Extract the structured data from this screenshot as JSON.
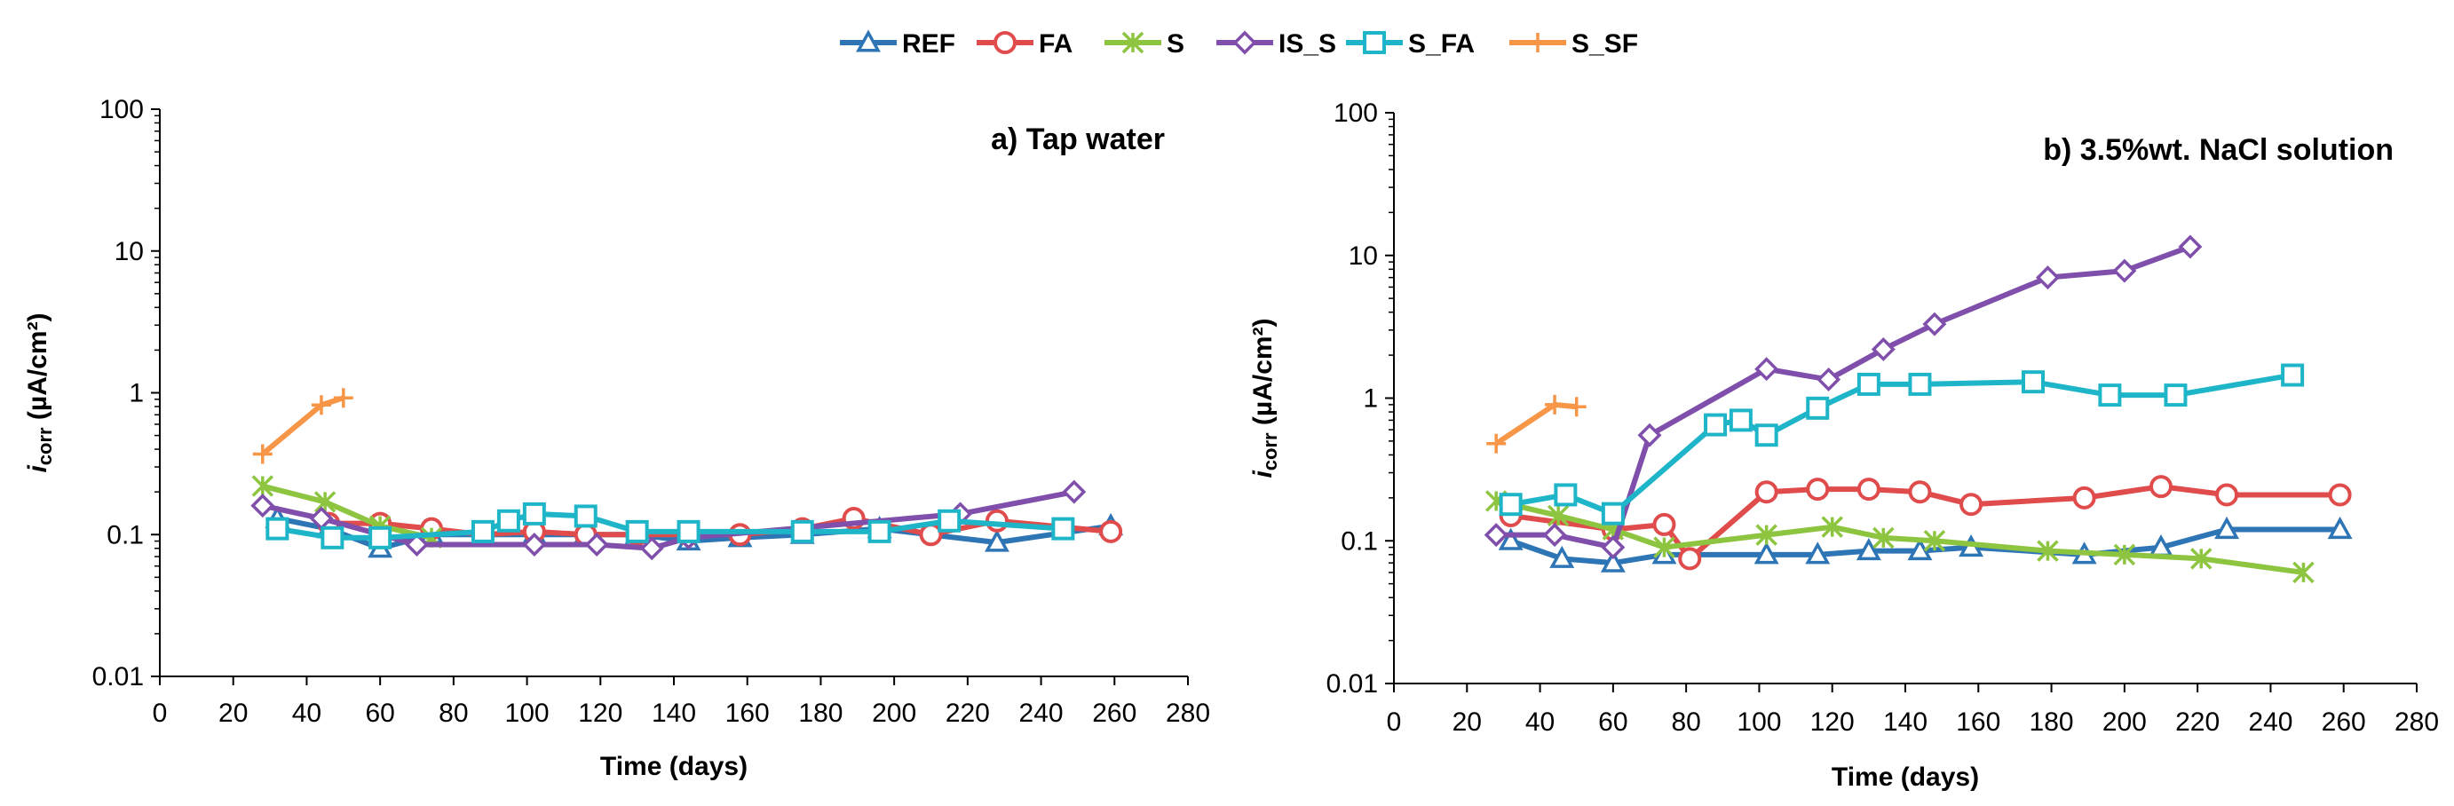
{
  "chart_data": [
    {
      "type": "line",
      "title": "a) Tap water",
      "xlabel": "Time (days)",
      "ylabel_main": "i",
      "ylabel_sub": "corr",
      "ylabel_rest": " (µA/cm²)",
      "xlim": [
        0,
        280
      ],
      "ylim": [
        0.01,
        100
      ],
      "yscale": "log",
      "x_ticks": [
        "0",
        "20",
        "40",
        "60",
        "80",
        "100",
        "120",
        "140",
        "160",
        "180",
        "200",
        "220",
        "240",
        "260",
        "280"
      ],
      "y_ticks": [
        "0.01",
        "0.1",
        "1",
        "10",
        "100"
      ],
      "legend": "top-center",
      "grid": false,
      "series": [
        {
          "name": "REF",
          "color": "#2E75B6",
          "marker": "triangle",
          "x": [
            32,
            46,
            60,
            74,
            88,
            102,
            116,
            130,
            144,
            158,
            175,
            196,
            228,
            259
          ],
          "y": [
            0.13,
            0.11,
            0.08,
            0.1,
            0.1,
            0.1,
            0.1,
            0.1,
            0.09,
            0.095,
            0.1,
            0.11,
            0.088,
            0.115
          ]
        },
        {
          "name": "FA",
          "color": "#E04B4B",
          "marker": "circle",
          "x": [
            46,
            60,
            74,
            88,
            102,
            116,
            130,
            144,
            158,
            175,
            189,
            210,
            228,
            259
          ],
          "y": [
            0.12,
            0.12,
            0.11,
            0.1,
            0.105,
            0.1,
            0.1,
            0.1,
            0.1,
            0.11,
            0.13,
            0.1,
            0.125,
            0.105
          ]
        },
        {
          "name": "S",
          "color": "#8DC540",
          "marker": "x",
          "x": [
            28,
            45,
            60,
            74
          ],
          "y": [
            0.22,
            0.17,
            0.115,
            0.095
          ]
        },
        {
          "name": "IS_S",
          "color": "#7F4FAB",
          "marker": "diamond",
          "x": [
            28,
            44,
            70,
            102,
            119,
            134,
            144,
            218,
            249
          ],
          "y": [
            0.16,
            0.13,
            0.085,
            0.085,
            0.085,
            0.08,
            0.095,
            0.14,
            0.2
          ]
        },
        {
          "name": "S_FA",
          "color": "#1FB5C9",
          "marker": "square",
          "x": [
            32,
            47,
            60,
            88,
            95,
            102,
            116,
            130,
            144,
            175,
            196,
            215,
            246
          ],
          "y": [
            0.11,
            0.095,
            0.095,
            0.105,
            0.125,
            0.14,
            0.135,
            0.105,
            0.105,
            0.105,
            0.105,
            0.125,
            0.11
          ]
        },
        {
          "name": "S_SF",
          "color": "#F79646",
          "marker": "plus",
          "x": [
            28,
            44,
            50
          ],
          "y": [
            0.37,
            0.82,
            0.92
          ]
        }
      ]
    },
    {
      "type": "line",
      "title": "b) 3.5%wt. NaCl solution",
      "xlabel": "Time (days)",
      "ylabel_main": "i",
      "ylabel_sub": "corr",
      "ylabel_rest": " (µA/cm²)",
      "xlim": [
        0,
        280
      ],
      "ylim": [
        0.01,
        100
      ],
      "yscale": "log",
      "x_ticks": [
        "0",
        "20",
        "40",
        "60",
        "80",
        "100",
        "120",
        "140",
        "160",
        "180",
        "200",
        "220",
        "240",
        "260",
        "280"
      ],
      "y_ticks": [
        "0.01",
        "0.1",
        "1",
        "10",
        "100"
      ],
      "legend": "top-center",
      "grid": false,
      "series": [
        {
          "name": "REF",
          "color": "#2E75B6",
          "marker": "triangle",
          "x": [
            32,
            46,
            60,
            74,
            102,
            116,
            130,
            144,
            158,
            189,
            210,
            228,
            259
          ],
          "y": [
            0.1,
            0.075,
            0.07,
            0.08,
            0.08,
            0.08,
            0.085,
            0.085,
            0.09,
            0.08,
            0.09,
            0.12,
            0.12
          ]
        },
        {
          "name": "FA",
          "color": "#E04B4B",
          "marker": "circle",
          "x": [
            32,
            60,
            74,
            81,
            102,
            116,
            130,
            144,
            158,
            189,
            210,
            228,
            259
          ],
          "y": [
            0.15,
            0.12,
            0.13,
            0.075,
            0.22,
            0.23,
            0.23,
            0.22,
            0.18,
            0.2,
            0.24,
            0.21,
            0.21
          ]
        },
        {
          "name": "S",
          "color": "#8DC540",
          "marker": "x",
          "x": [
            28,
            45,
            60,
            74,
            102,
            120,
            134,
            148,
            179,
            200,
            221,
            249
          ],
          "y": [
            0.19,
            0.15,
            0.12,
            0.09,
            0.11,
            0.125,
            0.105,
            0.1,
            0.085,
            0.08,
            0.075,
            0.06
          ]
        },
        {
          "name": "IS_S",
          "color": "#7F4FAB",
          "marker": "diamond",
          "x": [
            28,
            44,
            60,
            70,
            102,
            119,
            134,
            148,
            179,
            200,
            218
          ],
          "y": [
            0.11,
            0.11,
            0.09,
            0.55,
            1.6,
            1.35,
            2.2,
            3.3,
            7.0,
            7.8,
            11.5
          ]
        },
        {
          "name": "S_FA",
          "color": "#1FB5C9",
          "marker": "square",
          "x": [
            32,
            47,
            60,
            88,
            95,
            102,
            116,
            130,
            144,
            175,
            196,
            214,
            246
          ],
          "y": [
            0.18,
            0.21,
            0.155,
            0.65,
            0.7,
            0.55,
            0.85,
            1.25,
            1.25,
            1.3,
            1.05,
            1.05,
            1.45
          ]
        },
        {
          "name": "S_SF",
          "color": "#F79646",
          "marker": "plus",
          "x": [
            28,
            44,
            50
          ],
          "y": [
            0.48,
            0.9,
            0.87
          ]
        }
      ]
    }
  ]
}
